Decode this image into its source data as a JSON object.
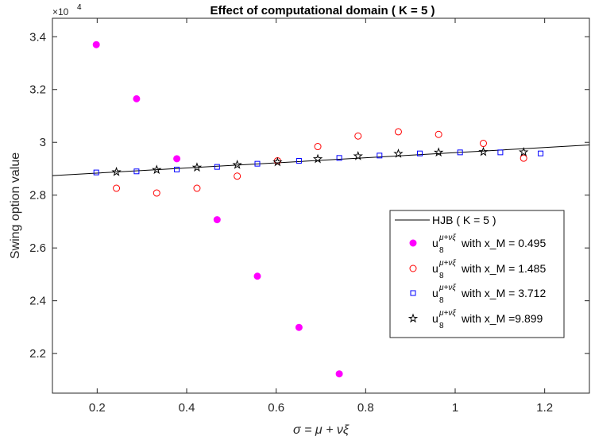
{
  "chart_data": {
    "type": "scatter",
    "title": "Effect of computational domain ( K = 5 )",
    "xlabel": "σ = μ + νξ",
    "ylabel": "Swing option value",
    "y_multiplier_label": "×10",
    "y_multiplier_exp": "4",
    "xlim": [
      0.1,
      1.3
    ],
    "ylim": [
      20500,
      34700
    ],
    "xticks": [
      0.2,
      0.4,
      0.6,
      0.8,
      1,
      1.2
    ],
    "xtick_labels": [
      "0.2",
      "0.4",
      "0.6",
      "0.8",
      "1",
      "1.2"
    ],
    "yticks": [
      22000,
      24000,
      26000,
      28000,
      30000,
      32000,
      34000
    ],
    "ytick_labels": [
      "2.2",
      "2.4",
      "2.6",
      "2.8",
      "3",
      "3.2",
      "3.4"
    ],
    "grid": false,
    "legend_position": "lower-right",
    "series": [
      {
        "name": "HJB ( K = 5 )",
        "style": "line",
        "color": "#000000",
        "x": [
          0.1,
          1.3
        ],
        "y": [
          28740,
          29900
        ]
      },
      {
        "name": "with x_M = 0.495",
        "style": "filled-circle",
        "color": "#ff00ff",
        "x": [
          0.198,
          0.288,
          0.378,
          0.468,
          0.558,
          0.651,
          0.741
        ],
        "y": [
          33700,
          31650,
          29380,
          27070,
          24930,
          22990,
          21230
        ]
      },
      {
        "name": "with x_M = 1.485",
        "style": "open-circle",
        "color": "#ff0000",
        "x": [
          0.243,
          0.333,
          0.423,
          0.513,
          0.603,
          0.693,
          0.783,
          0.873,
          0.963,
          1.063,
          1.153
        ],
        "y": [
          28260,
          28080,
          28260,
          28720,
          29300,
          29840,
          30240,
          30400,
          30300,
          29960,
          29400
        ]
      },
      {
        "name": "with x_M = 3.712",
        "style": "open-square",
        "color": "#0000ff",
        "x": [
          0.198,
          0.288,
          0.378,
          0.468,
          0.558,
          0.651,
          0.741,
          0.831,
          0.921,
          1.011,
          1.101,
          1.191
        ],
        "y": [
          28860,
          28900,
          28970,
          29070,
          29190,
          29300,
          29410,
          29500,
          29580,
          29620,
          29620,
          29580
        ]
      },
      {
        "name": "with x_M =9.899",
        "style": "star",
        "color": "#000000",
        "x": [
          0.243,
          0.333,
          0.423,
          0.513,
          0.603,
          0.693,
          0.783,
          0.873,
          0.963,
          1.063,
          1.153
        ],
        "y": [
          28880,
          28960,
          29050,
          29150,
          29250,
          29370,
          29480,
          29570,
          29620,
          29640,
          29630
        ]
      }
    ],
    "legend_u_base": "u",
    "legend_u_sub": "8",
    "legend_u_sup": "μ+νξ"
  }
}
